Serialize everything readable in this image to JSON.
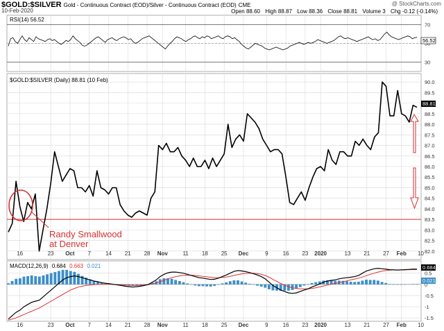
{
  "header": {
    "symbol": "$GOLD:$SILVER",
    "description": "Gold - Continuous Contract (EOD)/Silver - Continuous Contract (EOD)",
    "exchange": "CME",
    "date": "10-Feb-2020",
    "credit": "@ StockCharts.com",
    "quote": {
      "open_label": "Open",
      "open": "88.60",
      "high_label": "High",
      "high": "88.87",
      "low_label": "Low",
      "low": "88.36",
      "close_label": "Close",
      "close": "88.81",
      "volume_label": "Volume",
      "volume": "3",
      "chg_label": "Chg",
      "chg": "-0.12 (-0.14%)"
    }
  },
  "colors": {
    "price_line": "#000000",
    "support_line": "#d33030",
    "annotation": "#d33030",
    "macd_signal": "#e03030",
    "macd_hist": "#3d8fc9",
    "grid": "#d8d8d8",
    "axis_text": "#333333"
  },
  "chart_data": [
    {
      "type": "line",
      "panel": "RSI",
      "legend": "RSI(14) 56.52",
      "last_value_label": "56.52",
      "ylim": [
        20,
        80
      ],
      "yticks": [
        30,
        50,
        70,
        90
      ],
      "reference_lines": [
        30,
        70
      ],
      "values": [
        47,
        55,
        56,
        52,
        50,
        54,
        58,
        54,
        52,
        56,
        54,
        52,
        57,
        55,
        54,
        53,
        52,
        54,
        55,
        53,
        54,
        52,
        50,
        49,
        51,
        53,
        52,
        54,
        58,
        55,
        53,
        51,
        48,
        47,
        48,
        50,
        52,
        54,
        56,
        57,
        55,
        53,
        51,
        54,
        55,
        56,
        54,
        53,
        55,
        56,
        57,
        56,
        54,
        55,
        52,
        50,
        51,
        53,
        55,
        56,
        57,
        58,
        56,
        54,
        52,
        50,
        48,
        46,
        44,
        47,
        50,
        52,
        55,
        57,
        56,
        55,
        53,
        52,
        54,
        55,
        57,
        58,
        56,
        55,
        57,
        56,
        58,
        57,
        55,
        56,
        57,
        58,
        56,
        55,
        57,
        58,
        57,
        55,
        56,
        54,
        52,
        49,
        47,
        45,
        44,
        46,
        48,
        50,
        49,
        48,
        47,
        45,
        44,
        43,
        44,
        45,
        46,
        45,
        44,
        43,
        44,
        45,
        47,
        48,
        49,
        50,
        51,
        50,
        49,
        50,
        51,
        50,
        51,
        52,
        54,
        53,
        52,
        51,
        50,
        51,
        52,
        53,
        55,
        57,
        58,
        56,
        55,
        56,
        55,
        54,
        53,
        52,
        53,
        54,
        55,
        56,
        57,
        55,
        54,
        55,
        53,
        54,
        57,
        60,
        62,
        59,
        57,
        56,
        55,
        54,
        55,
        56,
        57,
        58,
        57,
        55,
        56,
        56.5
      ]
    },
    {
      "type": "line",
      "panel": "price",
      "legend": "$GOLD:$SILVER (Daily) 88.81 (10 Feb)",
      "last_value_label": "88.81",
      "ylim": [
        81.6,
        90.4
      ],
      "yticks": [
        82.0,
        82.5,
        83.0,
        83.5,
        84.0,
        84.5,
        85.0,
        85.5,
        86.0,
        86.5,
        87.0,
        87.5,
        88.0,
        88.5,
        89.0,
        89.5,
        90.0
      ],
      "support_level": 83.5,
      "x_labels": [
        {
          "label": "16",
          "i": 3
        },
        {
          "label": "23",
          "i": 11
        },
        {
          "label": "Oct",
          "i": 16
        },
        {
          "label": "7",
          "i": 21
        },
        {
          "label": "14",
          "i": 26
        },
        {
          "label": "21",
          "i": 31
        },
        {
          "label": "28",
          "i": 36
        },
        {
          "label": "Nov",
          "i": 40
        },
        {
          "label": "11",
          "i": 46
        },
        {
          "label": "18",
          "i": 51
        },
        {
          "label": "25",
          "i": 56
        },
        {
          "label": "Dec",
          "i": 61
        },
        {
          "label": "9",
          "i": 67
        },
        {
          "label": "16",
          "i": 72
        },
        {
          "label": "23",
          "i": 77
        },
        {
          "label": "2020",
          "i": 81
        },
        {
          "label": "13",
          "i": 88
        },
        {
          "label": "21",
          "i": 93
        },
        {
          "label": "27",
          "i": 98
        },
        {
          "label": "Feb",
          "i": 102
        },
        {
          "label": "10",
          "i": 107
        }
      ],
      "values": [
        82.9,
        83.3,
        85.3,
        84.1,
        83.4,
        84.3,
        84.0,
        84.7,
        82.0,
        83.0,
        84.0,
        85.2,
        86.7,
        86.0,
        85.3,
        85.6,
        85.9,
        85.8,
        85.0,
        85.0,
        84.8,
        85.1,
        84.6,
        85.8,
        85.0,
        84.9,
        84.7,
        85.0,
        85.0,
        84.2,
        83.9,
        83.7,
        83.6,
        83.8,
        83.9,
        83.8,
        83.7,
        84.5,
        84.8,
        87.0,
        86.8,
        87.1,
        86.7,
        86.7,
        86.9,
        86.5,
        86.3,
        86.0,
        86.4,
        86.0,
        86.0,
        86.3,
        85.9,
        86.4,
        86.0,
        86.3,
        86.6,
        88.0,
        86.9,
        87.3,
        87.5,
        87.2,
        88.5,
        88.3,
        88.1,
        87.8,
        87.3,
        87.0,
        86.7,
        86.8,
        86.8,
        86.6,
        85.5,
        84.3,
        84.2,
        84.5,
        84.8,
        84.4,
        85.0,
        85.5,
        85.9,
        86.0,
        85.8,
        86.8,
        86.3,
        86.1,
        86.7,
        86.7,
        86.5,
        86.5,
        87.2,
        87.0,
        87.3,
        87.0,
        86.8,
        87.4,
        87.6,
        90.0,
        89.8,
        88.4,
        88.4,
        89.6,
        88.5,
        88.4,
        88.1,
        88.9,
        88.8
      ]
    },
    {
      "type": "bar+line",
      "panel": "MACD",
      "legend_prefix": "MACD(12,26,9)",
      "legend_macd": "0.684",
      "legend_signal": "0.663",
      "legend_hist": "0.021",
      "last_labels": {
        "macd": "0.684",
        "hist": "0.021"
      },
      "ylim": [
        -1.65,
        1.05
      ],
      "yticks": [
        0.5,
        0.0,
        -0.5,
        -1.0,
        -1.5
      ],
      "macd": [
        -1.55,
        -1.4,
        -1.25,
        -1.15,
        -1.0,
        -0.9,
        -0.8,
        -0.75,
        -0.7,
        -0.55,
        -0.4,
        -0.25,
        -0.1,
        0.05,
        0.2,
        0.3,
        0.35,
        0.38,
        0.35,
        0.3,
        0.25,
        0.2,
        0.15,
        0.12,
        0.08,
        0.05,
        0.03,
        0.0,
        -0.02,
        -0.05,
        -0.08,
        -0.1,
        -0.12,
        -0.1,
        -0.08,
        -0.05,
        0.0,
        0.1,
        0.2,
        0.35,
        0.45,
        0.52,
        0.55,
        0.55,
        0.53,
        0.5,
        0.45,
        0.4,
        0.35,
        0.3,
        0.28,
        0.25,
        0.22,
        0.23,
        0.28,
        0.35,
        0.42,
        0.5,
        0.58,
        0.62,
        0.6,
        0.57,
        0.53,
        0.48,
        0.42,
        0.35,
        0.25,
        0.1,
        -0.05,
        -0.15,
        -0.25,
        -0.32,
        -0.38,
        -0.4,
        -0.38,
        -0.32,
        -0.25,
        -0.2,
        -0.12,
        -0.05,
        0.02,
        0.1,
        0.15,
        0.18,
        0.2,
        0.25,
        0.28,
        0.3,
        0.32,
        0.35,
        0.4,
        0.5,
        0.6,
        0.65,
        0.7,
        0.72,
        0.7,
        0.68,
        0.66,
        0.65,
        0.64,
        0.65,
        0.66,
        0.67,
        0.68,
        0.684
      ],
      "signal": [
        -1.6,
        -1.55,
        -1.5,
        -1.42,
        -1.35,
        -1.27,
        -1.2,
        -1.12,
        -1.05,
        -0.95,
        -0.85,
        -0.75,
        -0.65,
        -0.55,
        -0.45,
        -0.35,
        -0.25,
        -0.18,
        -0.12,
        -0.08,
        -0.05,
        -0.03,
        -0.01,
        0.0,
        0.01,
        0.01,
        0.01,
        0.0,
        -0.01,
        -0.02,
        -0.03,
        -0.04,
        -0.05,
        -0.05,
        -0.04,
        -0.03,
        -0.01,
        0.02,
        0.06,
        0.12,
        0.18,
        0.25,
        0.3,
        0.35,
        0.38,
        0.4,
        0.41,
        0.41,
        0.4,
        0.38,
        0.36,
        0.34,
        0.32,
        0.3,
        0.3,
        0.31,
        0.33,
        0.36,
        0.4,
        0.44,
        0.47,
        0.49,
        0.5,
        0.5,
        0.48,
        0.45,
        0.4,
        0.32,
        0.22,
        0.13,
        0.04,
        -0.04,
        -0.1,
        -0.15,
        -0.18,
        -0.2,
        -0.2,
        -0.2,
        -0.18,
        -0.15,
        -0.11,
        -0.07,
        -0.03,
        0.01,
        0.04,
        0.08,
        0.12,
        0.16,
        0.2,
        0.24,
        0.28,
        0.33,
        0.39,
        0.45,
        0.5,
        0.55,
        0.59,
        0.62,
        0.64,
        0.65,
        0.65,
        0.65,
        0.655,
        0.66,
        0.661,
        0.663
      ]
    }
  ],
  "annotations": {
    "label_line1": "Randy Smallwood",
    "label_line2": "at Denver"
  }
}
